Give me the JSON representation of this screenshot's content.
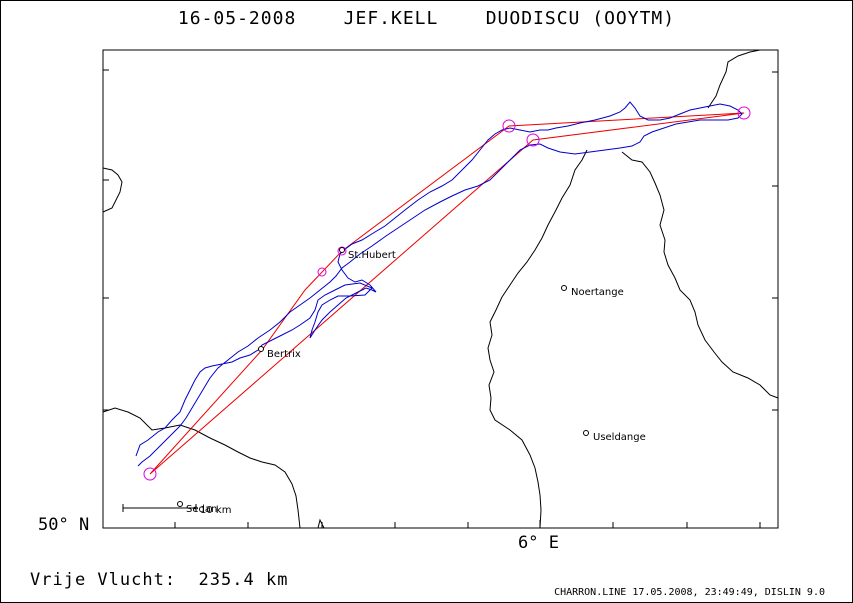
{
  "header": {
    "date": "16-05-2008",
    "pilot": "JEF.KELL",
    "glider": "DUODISCU (OOYTM)"
  },
  "axes": {
    "lat_label": "50° N",
    "lon_label": "6° E"
  },
  "places": [
    {
      "name": "St.Hubert"
    },
    {
      "name": "Bertrix"
    },
    {
      "name": "Noertange"
    },
    {
      "name": "Useldange"
    },
    {
      "name": "Sedan"
    }
  ],
  "scale": {
    "label": "10 km"
  },
  "flight": {
    "label": "Vrije Vlucht:",
    "distance": "235.4 km"
  },
  "footer": {
    "text": "CHARRON.LINE 17.05.2008, 23:49:49, DISLIN 9.0"
  },
  "colors": {
    "track": "#0000cc",
    "task": "#ee0000",
    "turnpoint": "#dd00dd",
    "border": "#000000"
  }
}
